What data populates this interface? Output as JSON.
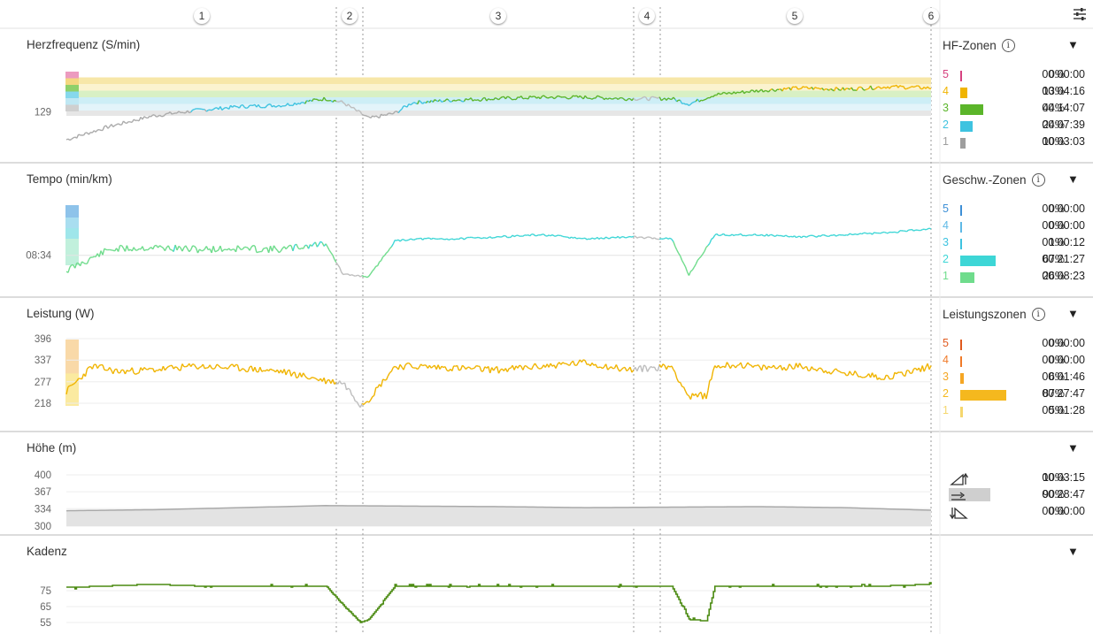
{
  "laps": [
    "1",
    "2",
    "3",
    "4",
    "5",
    "6"
  ],
  "panels": [
    {
      "title": "Herzfrequenz (S/min)",
      "zones_title": "HF-Zonen",
      "axis_ticks": [
        "129"
      ],
      "zones": [
        {
          "n": "5",
          "pct": "0%",
          "time": "00:00:00",
          "color": "#d6417f",
          "frac": 0.0
        },
        {
          "n": "4",
          "pct": "13%",
          "time": "00:04:16",
          "color": "#f0b400",
          "frac": 0.13
        },
        {
          "n": "3",
          "pct": "44%",
          "time": "00:14:07",
          "color": "#5bb52a",
          "frac": 0.44
        },
        {
          "n": "2",
          "pct": "24%",
          "time": "00:07:39",
          "color": "#3ec3e0",
          "frac": 0.24
        },
        {
          "n": "1",
          "pct": "10%",
          "time": "00:03:03",
          "color": "#9e9e9e",
          "frac": 0.1
        }
      ]
    },
    {
      "title": "Tempo (min/km)",
      "zones_title": "Geschw.-Zonen",
      "axis_ticks": [
        "08:34"
      ],
      "zones": [
        {
          "n": "5",
          "pct": "0%",
          "time": "00:00:00",
          "color": "#3d8fd6",
          "frac": 0.0
        },
        {
          "n": "4",
          "pct": "0%",
          "time": "00:00:00",
          "color": "#5fb9e6",
          "frac": 0.0
        },
        {
          "n": "3",
          "pct": "1%",
          "time": "00:00:12",
          "color": "#3ec3e0",
          "frac": 0.01
        },
        {
          "n": "2",
          "pct": "67%",
          "time": "00:21:27",
          "color": "#3dd6d6",
          "frac": 0.67
        },
        {
          "n": "1",
          "pct": "26%",
          "time": "00:08:23",
          "color": "#6fdc8c",
          "frac": 0.26
        }
      ]
    },
    {
      "title": "Leistung (W)",
      "zones_title": "Leistungszonen",
      "axis_ticks": [
        "396",
        "337",
        "277",
        "218"
      ],
      "zones": [
        {
          "n": "5",
          "pct": "0%",
          "time": "00:00:00",
          "color": "#e05a1e",
          "frac": 0.0
        },
        {
          "n": "4",
          "pct": "0%",
          "time": "00:00:00",
          "color": "#f07a28",
          "frac": 0.0
        },
        {
          "n": "3",
          "pct": "6%",
          "time": "00:01:46",
          "color": "#f5a623",
          "frac": 0.06
        },
        {
          "n": "2",
          "pct": "87%",
          "time": "00:27:47",
          "color": "#f5b81e",
          "frac": 0.87
        },
        {
          "n": "1",
          "pct": "5%",
          "time": "00:01:28",
          "color": "#f5d76e",
          "frac": 0.05
        }
      ]
    },
    {
      "title": "Höhe (m)",
      "axis_ticks": [
        "400",
        "367",
        "334",
        "300"
      ],
      "rows": [
        {
          "icon": "uphill-icon",
          "pct": "10%",
          "time": "00:03:15"
        },
        {
          "icon": "flat-icon",
          "pct": "90%",
          "time": "00:28:47"
        },
        {
          "icon": "downhill-icon",
          "pct": "0%",
          "time": "00:00:00"
        }
      ]
    },
    {
      "title": "Kadenz",
      "axis_ticks": [
        "75",
        "65",
        "55"
      ]
    }
  ],
  "colors": {
    "hr": "#5bb52a",
    "pace": "#3ec3e0",
    "power": "#f0b400",
    "elev": "#a9a9a9",
    "cadence": "#4a8a10",
    "paused": "#bdbdbd"
  },
  "chart_data": [
    {
      "type": "line",
      "ylabel": "Herzfrequenz (S/min)",
      "y_ticks": [
        129
      ],
      "series": [
        {
          "x": [
            0,
            5,
            10,
            15,
            20,
            25,
            30,
            32,
            35,
            38,
            40,
            45,
            50,
            55,
            60,
            65,
            70,
            72,
            75,
            80,
            85,
            90,
            95,
            100
          ],
          "y": [
            108,
            118,
            126,
            130,
            133,
            134,
            139,
            136,
            124,
            128,
            136,
            138,
            139,
            140,
            140,
            139,
            139,
            135,
            142,
            145,
            147,
            146,
            148,
            147
          ]
        }
      ]
    },
    {
      "type": "line",
      "ylabel": "Tempo (min/km)",
      "y_ticks": [
        "08:34"
      ],
      "series": [
        {
          "x": [
            0,
            5,
            10,
            15,
            20,
            25,
            30,
            32,
            35,
            38,
            40,
            45,
            50,
            55,
            60,
            65,
            70,
            72,
            75,
            80,
            85,
            90,
            95,
            100
          ],
          "y": [
            "09:10",
            "08:20",
            "08:15",
            "08:20",
            "08:18",
            "08:20",
            "08:05",
            "09:20",
            "09:25",
            "08:00",
            "07:55",
            "07:55",
            "07:50",
            "07:45",
            "07:55",
            "07:50",
            "07:55",
            "09:20",
            "07:45",
            "07:45",
            "07:50",
            "07:45",
            "07:40",
            "07:30"
          ]
        }
      ]
    },
    {
      "type": "line",
      "ylabel": "Leistung (W)",
      "y_ticks": [
        396,
        337,
        277,
        218
      ],
      "series": [
        {
          "x": [
            0,
            3,
            6,
            10,
            15,
            20,
            25,
            30,
            32,
            34,
            35,
            38,
            40,
            45,
            50,
            55,
            60,
            65,
            70,
            72,
            74,
            75,
            78,
            80,
            85,
            90,
            95,
            100
          ],
          "y": [
            250,
            320,
            305,
            310,
            320,
            315,
            305,
            280,
            275,
            215,
            230,
            320,
            320,
            315,
            310,
            320,
            330,
            310,
            320,
            235,
            240,
            320,
            325,
            315,
            320,
            300,
            290,
            320
          ]
        }
      ]
    },
    {
      "type": "area",
      "ylabel": "Höhe (m)",
      "y_ticks": [
        400,
        367,
        334,
        300
      ],
      "series": [
        {
          "x": [
            0,
            10,
            20,
            30,
            40,
            50,
            60,
            70,
            80,
            90,
            100
          ],
          "y": [
            330,
            332,
            336,
            340,
            339,
            338,
            336,
            337,
            338,
            336,
            331
          ]
        }
      ]
    },
    {
      "type": "line",
      "ylabel": "Kadenz",
      "y_ticks": [
        75,
        65,
        55
      ],
      "series": [
        {
          "x": [
            0,
            5,
            10,
            15,
            20,
            25,
            30,
            32,
            34,
            35,
            38,
            40,
            45,
            50,
            55,
            60,
            65,
            70,
            72,
            74,
            75,
            78,
            80,
            85,
            90,
            95,
            100
          ],
          "y": [
            77,
            78,
            79,
            78,
            78,
            78,
            78,
            66,
            55,
            57,
            78,
            78,
            78,
            78,
            78,
            78,
            78,
            78,
            57,
            56,
            78,
            78,
            78,
            78,
            78,
            78,
            79
          ]
        }
      ]
    }
  ]
}
